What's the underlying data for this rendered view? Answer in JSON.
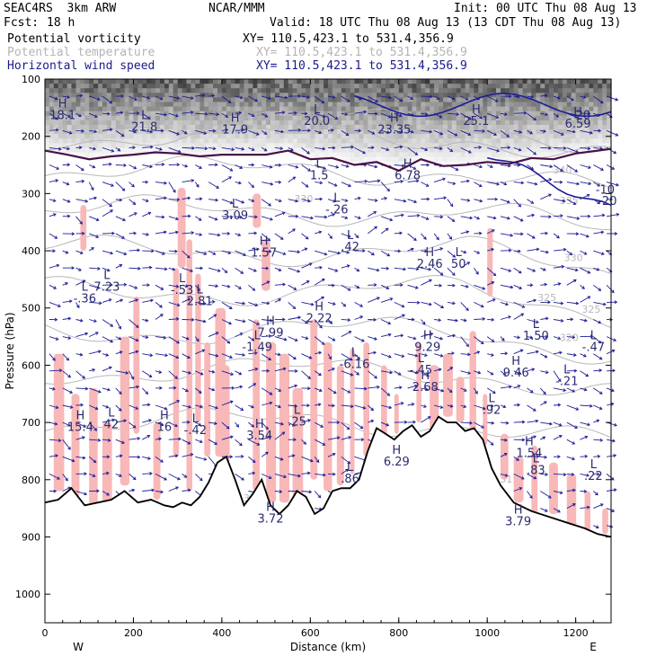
{
  "header": {
    "model": "SEAC4RS  3km ARW",
    "org": "NCAR/MMM",
    "init": "Init: 00 UTC Thu 08 Aug 13",
    "fcst_label": "Fcst:",
    "fcst_value": "18 h",
    "valid": "Valid: 18 UTC Thu 08 Aug 13 (13 CDT Thu 08 Aug 13)",
    "fields": [
      {
        "name": "Potential vorticity",
        "xy": "XY= 110.5,423.1 to 531.4,356.9",
        "color": "#000000"
      },
      {
        "name": "Potential temperature",
        "xy": "XY= 110.5,423.1 to 531.4,356.9",
        "color": "#b4b4b4"
      },
      {
        "name": "Horizontal wind speed",
        "xy": "XY= 110.5,423.1 to 531.4,356.9",
        "color": "#1a1a8c"
      }
    ]
  },
  "chart_data": {
    "type": "cross-section",
    "xlabel": "Distance (km)",
    "ylabel": "Pressure (hPa)",
    "xlim": [
      0,
      1280
    ],
    "ylim": [
      100,
      1050
    ],
    "xticks": [
      0,
      200,
      400,
      600,
      800,
      1000,
      1200
    ],
    "yticks": [
      100,
      200,
      300,
      400,
      500,
      600,
      700,
      800,
      900,
      1000
    ],
    "x_end_labels": {
      "left": "W",
      "right": "E"
    },
    "terrain_pressure": [
      [
        0,
        840
      ],
      [
        30,
        835
      ],
      [
        60,
        815
      ],
      [
        90,
        845
      ],
      [
        120,
        840
      ],
      [
        150,
        835
      ],
      [
        180,
        820
      ],
      [
        210,
        840
      ],
      [
        240,
        835
      ],
      [
        270,
        845
      ],
      [
        290,
        848
      ],
      [
        310,
        840
      ],
      [
        330,
        845
      ],
      [
        350,
        830
      ],
      [
        370,
        805
      ],
      [
        390,
        770
      ],
      [
        410,
        760
      ],
      [
        430,
        800
      ],
      [
        450,
        845
      ],
      [
        470,
        825
      ],
      [
        490,
        800
      ],
      [
        510,
        845
      ],
      [
        530,
        860
      ],
      [
        550,
        845
      ],
      [
        570,
        820
      ],
      [
        590,
        830
      ],
      [
        610,
        860
      ],
      [
        630,
        850
      ],
      [
        650,
        820
      ],
      [
        670,
        815
      ],
      [
        690,
        815
      ],
      [
        710,
        800
      ],
      [
        730,
        750
      ],
      [
        750,
        710
      ],
      [
        770,
        720
      ],
      [
        790,
        730
      ],
      [
        810,
        715
      ],
      [
        830,
        705
      ],
      [
        850,
        725
      ],
      [
        870,
        715
      ],
      [
        890,
        690
      ],
      [
        910,
        700
      ],
      [
        930,
        700
      ],
      [
        950,
        715
      ],
      [
        970,
        710
      ],
      [
        990,
        730
      ],
      [
        1010,
        780
      ],
      [
        1030,
        810
      ],
      [
        1060,
        840
      ],
      [
        1100,
        855
      ],
      [
        1140,
        865
      ],
      [
        1180,
        875
      ],
      [
        1220,
        885
      ],
      [
        1250,
        895
      ],
      [
        1280,
        900
      ]
    ],
    "tropopause_pv": [
      [
        0,
        225
      ],
      [
        50,
        232
      ],
      [
        100,
        240
      ],
      [
        150,
        235
      ],
      [
        200,
        232
      ],
      [
        250,
        228
      ],
      [
        300,
        230
      ],
      [
        350,
        235
      ],
      [
        400,
        232
      ],
      [
        450,
        232
      ],
      [
        500,
        232
      ],
      [
        550,
        225
      ],
      [
        600,
        240
      ],
      [
        650,
        238
      ],
      [
        700,
        250
      ],
      [
        750,
        245
      ],
      [
        800,
        260
      ],
      [
        850,
        240
      ],
      [
        900,
        252
      ],
      [
        950,
        250
      ],
      [
        1000,
        245
      ],
      [
        1050,
        248
      ],
      [
        1100,
        238
      ],
      [
        1150,
        240
      ],
      [
        1200,
        230
      ],
      [
        1250,
        225
      ],
      [
        1280,
        222
      ]
    ],
    "theta_labels": [
      {
        "text": "340",
        "x": 1170,
        "p": 265
      },
      {
        "text": "330",
        "x": 585,
        "p": 315
      },
      {
        "text": "335",
        "x": 1185,
        "p": 318
      },
      {
        "text": "330",
        "x": 1195,
        "p": 418
      },
      {
        "text": "325",
        "x": 1135,
        "p": 488
      },
      {
        "text": "325",
        "x": 1235,
        "p": 508
      },
      {
        "text": "320",
        "x": 1185,
        "p": 558
      },
      {
        "text": "315",
        "x": 1050,
        "p": 805
      },
      {
        "text": "310",
        "x": 470,
        "p": 838
      },
      {
        "text": "305",
        "x": 1185,
        "p": 888
      }
    ],
    "wind_labels": [
      {
        "text": "20",
        "x": 1200,
        "p": 170
      },
      {
        "text": "-20",
        "x": 1250,
        "p": 320
      },
      {
        "text": "-10",
        "x": 1245,
        "p": 300
      }
    ],
    "extrema": [
      {
        "mark": "H",
        "value": "18.1",
        "x": 40,
        "p": 170
      },
      {
        "mark": "L",
        "value": "21.8",
        "x": 225,
        "p": 190
      },
      {
        "mark": "H",
        "value": "17.9",
        "x": 430,
        "p": 195
      },
      {
        "mark": "L",
        "value": "20.0",
        "x": 615,
        "p": 180
      },
      {
        "mark": "H",
        "value": "23.35",
        "x": 790,
        "p": 195
      },
      {
        "mark": "H",
        "value": "25.1",
        "x": 975,
        "p": 180
      },
      {
        "mark": "H",
        "value": "6.59",
        "x": 1205,
        "p": 185
      },
      {
        "mark": "L",
        "value": "1.5",
        "x": 620,
        "p": 275
      },
      {
        "mark": "H",
        "value": "6.78",
        "x": 820,
        "p": 275
      },
      {
        "mark": "L",
        "value": "3.09",
        "x": 430,
        "p": 345
      },
      {
        "mark": "L",
        "value": "-.26",
        "x": 660,
        "p": 335
      },
      {
        "mark": "H",
        "value": "1.57",
        "x": 495,
        "p": 410
      },
      {
        "mark": "L",
        "value": ".42",
        "x": 690,
        "p": 400
      },
      {
        "mark": "H",
        "value": "2.46",
        "x": 870,
        "p": 430
      },
      {
        "mark": "L",
        "value": "50",
        "x": 935,
        "p": 430
      },
      {
        "mark": "L",
        "value": "7.23",
        "x": 140,
        "p": 470
      },
      {
        "mark": "L",
        "value": "-.36",
        "x": 90,
        "p": 490
      },
      {
        "mark": "L",
        "value": "-.53",
        "x": 310,
        "p": 475
      },
      {
        "mark": "L",
        "value": "2.81",
        "x": 350,
        "p": 495
      },
      {
        "mark": "H",
        "value": "2.22",
        "x": 620,
        "p": 525
      },
      {
        "mark": "H",
        "value": "7.99",
        "x": 510,
        "p": 550
      },
      {
        "mark": "L",
        "value": "-1.49",
        "x": 480,
        "p": 575
      },
      {
        "mark": "H",
        "value": "9.29",
        "x": 865,
        "p": 575
      },
      {
        "mark": "L",
        "value": "1.50",
        "x": 1110,
        "p": 555
      },
      {
        "mark": "L",
        "value": "-.47",
        "x": 1240,
        "p": 575
      },
      {
        "mark": "L",
        "value": "-6.16",
        "x": 700,
        "p": 605
      },
      {
        "mark": "H",
        "value": "9.46",
        "x": 1065,
        "p": 620
      },
      {
        "mark": "L",
        "value": "-.45",
        "x": 850,
        "p": 615
      },
      {
        "mark": "L",
        "value": "-.21",
        "x": 1180,
        "p": 635
      },
      {
        "mark": "H",
        "value": "2.68",
        "x": 860,
        "p": 645
      },
      {
        "mark": "L",
        "value": ".92",
        "x": 1010,
        "p": 685
      },
      {
        "mark": "H",
        "value": "15.4",
        "x": 80,
        "p": 715
      },
      {
        "mark": "L",
        "value": "42",
        "x": 150,
        "p": 710
      },
      {
        "mark": "H",
        "value": "16",
        "x": 270,
        "p": 715
      },
      {
        "mark": "L",
        "value": "-.42",
        "x": 340,
        "p": 720
      },
      {
        "mark": "L",
        "value": ".25",
        "x": 570,
        "p": 705
      },
      {
        "mark": "H",
        "value": "3.54",
        "x": 485,
        "p": 730
      },
      {
        "mark": "H",
        "value": "6.29",
        "x": 795,
        "p": 775
      },
      {
        "mark": "H",
        "value": "1.54",
        "x": 1095,
        "p": 760
      },
      {
        "mark": "L",
        "value": ".83",
        "x": 1110,
        "p": 790
      },
      {
        "mark": "L",
        "value": ".22",
        "x": 1240,
        "p": 800
      },
      {
        "mark": "L",
        "value": ".86",
        "x": 690,
        "p": 805
      },
      {
        "mark": "H",
        "value": "3.72",
        "x": 510,
        "p": 875
      },
      {
        "mark": "H",
        "value": "3.79",
        "x": 1070,
        "p": 880
      }
    ],
    "colors": {
      "pv_fill": "#f8b8b8",
      "pv_contour": "#4a1046",
      "theta": "#b8b8b8",
      "wind": "#1c1c98",
      "terrain": "#000000",
      "stratosphere_shade": "#444444"
    }
  }
}
